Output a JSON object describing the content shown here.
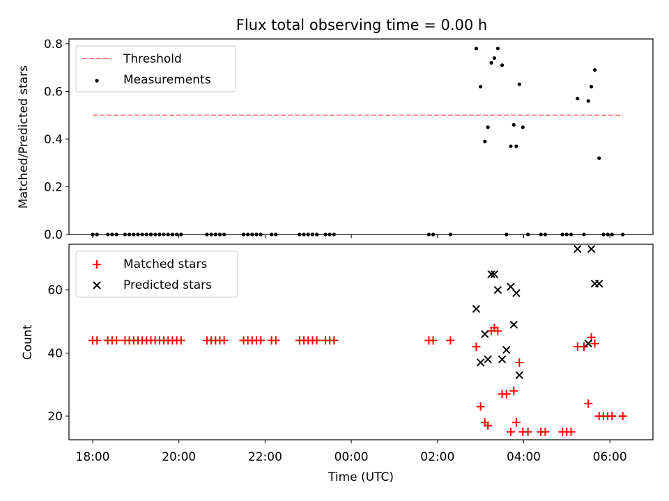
{
  "title": "Flux total observing time = 0.00 h",
  "colors": {
    "threshold": "#ff7f7f",
    "measurement": "#000000",
    "matched": "#ff0000",
    "predicted": "#000000",
    "axes": "#000000",
    "background": "#ffffff"
  },
  "chart_data": [
    {
      "type": "scatter",
      "ylabel": "Matched/Predicted stars",
      "xlabel": "",
      "x_unit": "hours since 18:00 UTC",
      "xlim": [
        -0.55,
        13.0
      ],
      "ylim": [
        0.0,
        0.82
      ],
      "yticks": [
        0.0,
        0.2,
        0.4,
        0.6,
        0.8
      ],
      "ytick_labels": [
        "0.0",
        "0.2",
        "0.4",
        "0.6",
        "0.8"
      ],
      "legend": {
        "location": "upper left",
        "entries": [
          {
            "label": "Threshold",
            "marker": "dashed-line"
          },
          {
            "label": "Measurements",
            "marker": "dot"
          }
        ]
      },
      "threshold": {
        "name": "Threshold",
        "y": 0.5,
        "x_start": 0.0,
        "x_end": 12.3
      },
      "series": [
        {
          "name": "Measurements",
          "points": [
            [
              0.0,
              0
            ],
            [
              0.1,
              0
            ],
            [
              0.35,
              0
            ],
            [
              0.45,
              0
            ],
            [
              0.55,
              0
            ],
            [
              0.75,
              0
            ],
            [
              0.85,
              0
            ],
            [
              0.95,
              0
            ],
            [
              1.05,
              0
            ],
            [
              1.15,
              0
            ],
            [
              1.25,
              0
            ],
            [
              1.35,
              0
            ],
            [
              1.45,
              0
            ],
            [
              1.55,
              0
            ],
            [
              1.65,
              0
            ],
            [
              1.75,
              0
            ],
            [
              1.85,
              0
            ],
            [
              1.95,
              0
            ],
            [
              2.05,
              0
            ],
            [
              2.65,
              0
            ],
            [
              2.75,
              0
            ],
            [
              2.85,
              0
            ],
            [
              2.95,
              0
            ],
            [
              3.05,
              0
            ],
            [
              3.5,
              0
            ],
            [
              3.6,
              0
            ],
            [
              3.7,
              0
            ],
            [
              3.8,
              0
            ],
            [
              3.9,
              0
            ],
            [
              4.15,
              0
            ],
            [
              4.25,
              0
            ],
            [
              4.8,
              0
            ],
            [
              4.9,
              0
            ],
            [
              5.0,
              0
            ],
            [
              5.1,
              0
            ],
            [
              5.2,
              0
            ],
            [
              5.4,
              0
            ],
            [
              5.5,
              0
            ],
            [
              5.6,
              0
            ],
            [
              7.8,
              0
            ],
            [
              7.9,
              0
            ],
            [
              8.3,
              0
            ],
            [
              8.9,
              0.78
            ],
            [
              9.0,
              0.62
            ],
            [
              9.1,
              0.39
            ],
            [
              9.17,
              0.45
            ],
            [
              9.25,
              0.72
            ],
            [
              9.32,
              0.74
            ],
            [
              9.4,
              0.78
            ],
            [
              9.5,
              0.71
            ],
            [
              9.6,
              0
            ],
            [
              9.7,
              0.37
            ],
            [
              9.77,
              0.46
            ],
            [
              9.83,
              0.37
            ],
            [
              9.9,
              0.63
            ],
            [
              9.98,
              0.45
            ],
            [
              10.1,
              0
            ],
            [
              10.4,
              0
            ],
            [
              10.5,
              0
            ],
            [
              10.9,
              0
            ],
            [
              11.0,
              0
            ],
            [
              11.1,
              0
            ],
            [
              11.25,
              0.57
            ],
            [
              11.4,
              0
            ],
            [
              11.5,
              0.56
            ],
            [
              11.57,
              0.62
            ],
            [
              11.65,
              0.69
            ],
            [
              11.75,
              0.32
            ],
            [
              11.85,
              0
            ],
            [
              11.95,
              0
            ],
            [
              12.05,
              0
            ],
            [
              12.3,
              0
            ]
          ]
        }
      ]
    },
    {
      "type": "scatter",
      "ylabel": "Count",
      "xlabel": "Time (UTC)",
      "x_unit": "hours since 18:00 UTC",
      "xlim": [
        -0.55,
        13.0
      ],
      "ylim": [
        12.5,
        74.5
      ],
      "yticks": [
        20,
        40,
        60
      ],
      "ytick_labels": [
        "20",
        "40",
        "60"
      ],
      "xticks": [
        0,
        2,
        4,
        6,
        8,
        10,
        12
      ],
      "xtick_labels": [
        "18:00",
        "20:00",
        "22:00",
        "00:00",
        "02:00",
        "04:00",
        "06:00"
      ],
      "legend": {
        "location": "upper left",
        "entries": [
          {
            "label": "Matched stars",
            "marker": "plus"
          },
          {
            "label": "Predicted stars",
            "marker": "x"
          }
        ]
      },
      "series": [
        {
          "name": "Matched stars",
          "points": [
            [
              0.0,
              44
            ],
            [
              0.1,
              44
            ],
            [
              0.35,
              44
            ],
            [
              0.45,
              44
            ],
            [
              0.55,
              44
            ],
            [
              0.75,
              44
            ],
            [
              0.85,
              44
            ],
            [
              0.95,
              44
            ],
            [
              1.05,
              44
            ],
            [
              1.15,
              44
            ],
            [
              1.25,
              44
            ],
            [
              1.35,
              44
            ],
            [
              1.45,
              44
            ],
            [
              1.55,
              44
            ],
            [
              1.65,
              44
            ],
            [
              1.75,
              44
            ],
            [
              1.85,
              44
            ],
            [
              1.95,
              44
            ],
            [
              2.05,
              44
            ],
            [
              2.65,
              44
            ],
            [
              2.75,
              44
            ],
            [
              2.85,
              44
            ],
            [
              2.95,
              44
            ],
            [
              3.05,
              44
            ],
            [
              3.5,
              44
            ],
            [
              3.6,
              44
            ],
            [
              3.7,
              44
            ],
            [
              3.8,
              44
            ],
            [
              3.9,
              44
            ],
            [
              4.15,
              44
            ],
            [
              4.25,
              44
            ],
            [
              4.8,
              44
            ],
            [
              4.9,
              44
            ],
            [
              5.0,
              44
            ],
            [
              5.1,
              44
            ],
            [
              5.2,
              44
            ],
            [
              5.4,
              44
            ],
            [
              5.5,
              44
            ],
            [
              5.6,
              44
            ],
            [
              7.8,
              44
            ],
            [
              7.9,
              44
            ],
            [
              8.3,
              44
            ],
            [
              8.9,
              42
            ],
            [
              9.0,
              23
            ],
            [
              9.1,
              18
            ],
            [
              9.17,
              17
            ],
            [
              9.25,
              47
            ],
            [
              9.32,
              48
            ],
            [
              9.4,
              47
            ],
            [
              9.5,
              27
            ],
            [
              9.6,
              27
            ],
            [
              9.7,
              15
            ],
            [
              9.77,
              28
            ],
            [
              9.83,
              18
            ],
            [
              9.9,
              37
            ],
            [
              9.98,
              15
            ],
            [
              10.1,
              15
            ],
            [
              10.4,
              15
            ],
            [
              10.5,
              15
            ],
            [
              10.9,
              15
            ],
            [
              11.0,
              15
            ],
            [
              11.1,
              15
            ],
            [
              11.25,
              42
            ],
            [
              11.4,
              42
            ],
            [
              11.5,
              24
            ],
            [
              11.57,
              45
            ],
            [
              11.65,
              43
            ],
            [
              11.75,
              20
            ],
            [
              11.85,
              20
            ],
            [
              11.95,
              20
            ],
            [
              12.05,
              20
            ],
            [
              12.3,
              20
            ]
          ]
        },
        {
          "name": "Predicted stars",
          "points": [
            [
              8.9,
              54
            ],
            [
              9.0,
              37
            ],
            [
              9.1,
              46
            ],
            [
              9.17,
              38
            ],
            [
              9.25,
              65
            ],
            [
              9.32,
              65
            ],
            [
              9.4,
              60
            ],
            [
              9.5,
              38
            ],
            [
              9.6,
              41
            ],
            [
              9.7,
              61
            ],
            [
              9.77,
              49
            ],
            [
              9.83,
              59
            ],
            [
              9.9,
              33
            ],
            [
              11.25,
              73
            ],
            [
              11.5,
              43
            ],
            [
              11.57,
              73
            ],
            [
              11.65,
              62
            ],
            [
              11.75,
              62
            ]
          ]
        }
      ]
    }
  ]
}
